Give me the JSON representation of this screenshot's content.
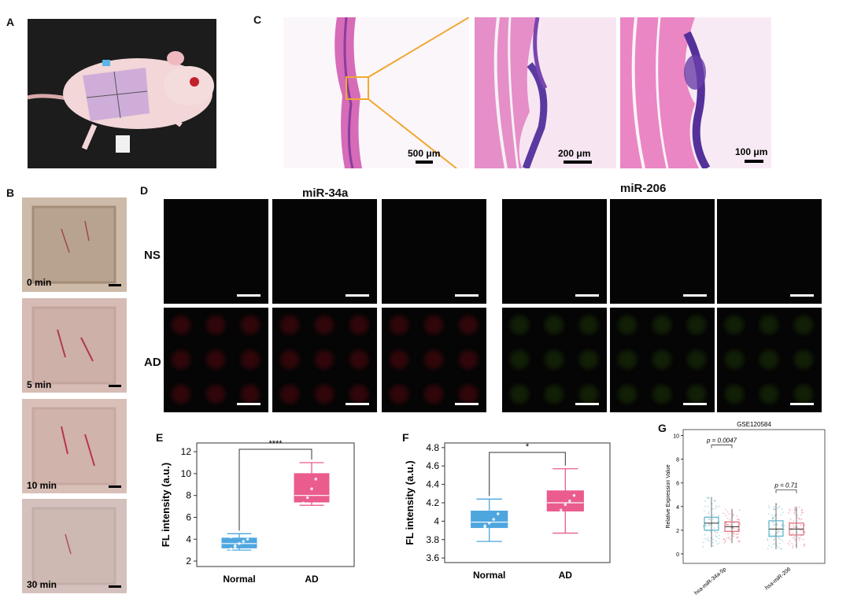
{
  "panels": {
    "A": "A",
    "B": "B",
    "C": "C",
    "D": "D",
    "E": "E",
    "F": "F",
    "G": "G"
  },
  "panel_c": {
    "scales": [
      "500 μm",
      "200 μm",
      "100 μm"
    ]
  },
  "panel_b": {
    "times": [
      "0 min",
      "5 min",
      "10 min",
      "30 min"
    ]
  },
  "panel_d": {
    "col_headers": [
      "miR-34a",
      "miR-206"
    ],
    "rows": [
      "NS",
      "AD"
    ]
  },
  "colors": {
    "normal_blue": "#4ea6df",
    "ad_pink": "#ea5c8e",
    "g_blue": "#5fb3c9",
    "g_red": "#e06a7a"
  },
  "chart_data": [
    {
      "panel": "E",
      "type": "box",
      "categories": [
        "Normal",
        "AD"
      ],
      "ylabel": "FL intensity (a.u.)",
      "yticks": [
        2,
        4,
        6,
        8,
        10,
        12
      ],
      "ylim": [
        1.5,
        12.8
      ],
      "significance": "****",
      "boxes": [
        {
          "name": "Normal",
          "whisker_low": 3.0,
          "q1": 3.2,
          "median": 3.6,
          "q3": 4.1,
          "whisker_high": 4.5
        },
        {
          "name": "AD",
          "whisker_low": 7.1,
          "q1": 7.4,
          "median": 8.0,
          "q3": 10.0,
          "whisker_high": 11.0
        }
      ],
      "points": {
        "Normal": [
          3.1,
          3.4,
          3.6,
          3.8,
          4.0,
          4.2,
          3.3
        ],
        "AD": [
          7.3,
          7.8,
          8.6,
          9.5,
          10.3
        ]
      }
    },
    {
      "panel": "F",
      "type": "box",
      "categories": [
        "Normal",
        "AD"
      ],
      "ylabel": "FL intensity (a.u.)",
      "yticks": [
        3.6,
        3.8,
        4.0,
        4.2,
        4.4,
        4.6,
        4.8
      ],
      "ylim": [
        3.55,
        4.85
      ],
      "significance": "*",
      "boxes": [
        {
          "name": "Normal",
          "whisker_low": 3.78,
          "q1": 3.93,
          "median": 3.99,
          "q3": 4.11,
          "whisker_high": 4.24
        },
        {
          "name": "AD",
          "whisker_low": 3.87,
          "q1": 4.11,
          "median": 4.2,
          "q3": 4.33,
          "whisker_high": 4.57
        }
      ],
      "points": {
        "Normal": [
          3.88,
          3.95,
          3.98,
          4.02,
          4.08,
          4.22,
          3.93
        ],
        "AD": [
          4.02,
          4.12,
          4.18,
          4.22,
          4.28,
          4.45,
          4.08
        ]
      }
    },
    {
      "panel": "G",
      "type": "box",
      "title": "GSE120584",
      "ylabel": "Relative Expression Value",
      "categories": [
        "hsa-miR-34a-5p",
        "hsa-miR-206"
      ],
      "yticks": [
        0,
        2,
        4,
        6,
        8,
        10
      ],
      "ylim": [
        -0.8,
        10.5
      ],
      "pvalues": [
        "p = 0.0047",
        "p = 0.71"
      ],
      "boxes": [
        {
          "name": "hsa-miR-34a-5p blue",
          "whisker_low": 0.6,
          "q1": 2.0,
          "median": 2.6,
          "q3": 3.1,
          "whisker_high": 4.8
        },
        {
          "name": "hsa-miR-34a-5p red",
          "whisker_low": 0.9,
          "q1": 1.9,
          "median": 2.3,
          "q3": 2.7,
          "whisker_high": 3.8
        },
        {
          "name": "hsa-miR-206 blue",
          "whisker_low": 0.4,
          "q1": 1.5,
          "median": 2.1,
          "q3": 2.8,
          "whisker_high": 4.3
        },
        {
          "name": "hsa-miR-206 red",
          "whisker_low": 0.5,
          "q1": 1.6,
          "median": 2.1,
          "q3": 2.6,
          "whisker_high": 4.0
        }
      ]
    }
  ]
}
